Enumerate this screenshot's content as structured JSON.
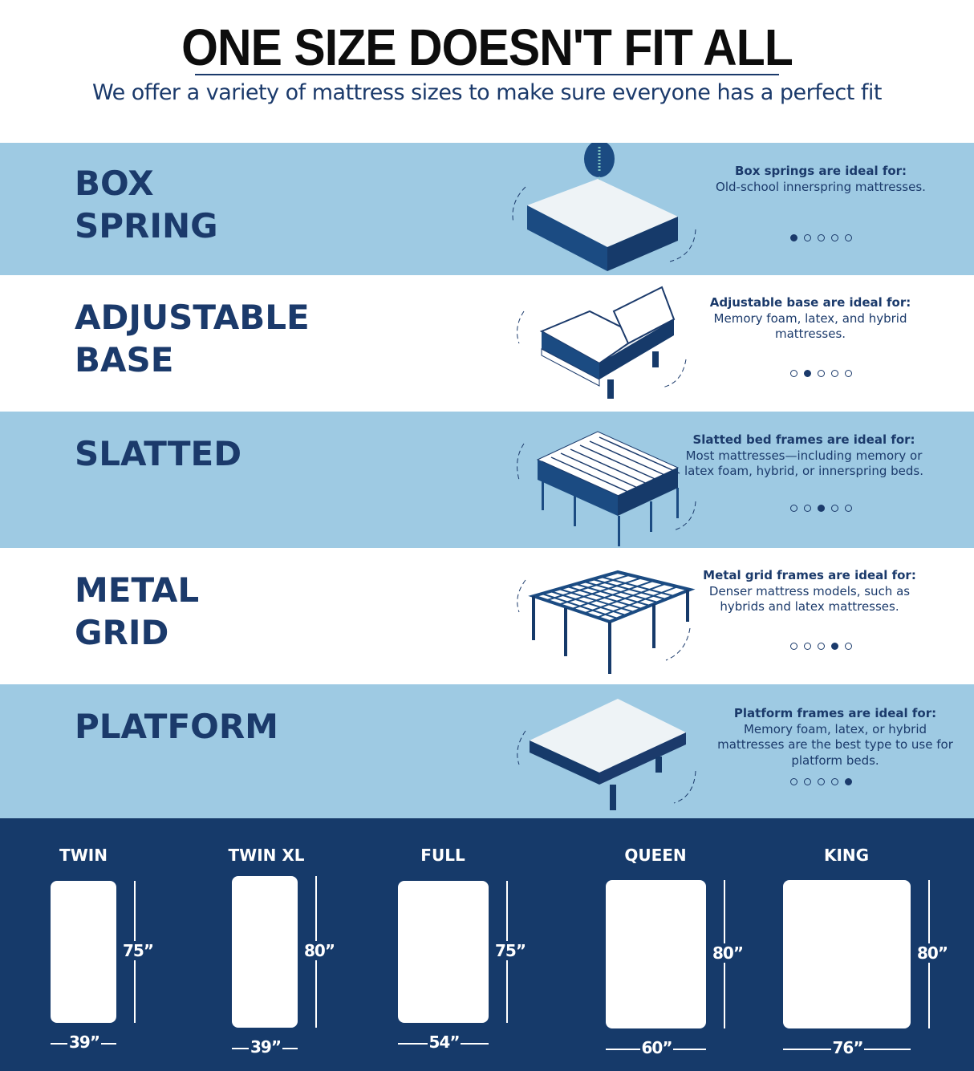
{
  "header": {
    "title": "ONE SIZE DOESN'T FIT ALL",
    "subtitle": "We offer a variety of mattress sizes to make sure everyone has a perfect fit"
  },
  "colors": {
    "light_band": "#9ecae3",
    "navy": "#163a6a",
    "text": "#1b3a6b"
  },
  "foundations": [
    {
      "title_line1": "BOX",
      "title_line2": "SPRING",
      "desc_heading": "Box springs are ideal for:",
      "desc_body": "Old-school innerspring mattresses.",
      "active_dot": 1,
      "icon": "box-spring-icon"
    },
    {
      "title_line1": "ADJUSTABLE",
      "title_line2": "BASE",
      "desc_heading": "Adjustable base are ideal for:",
      "desc_body": "Memory foam, latex, and hybrid mattresses.",
      "active_dot": 2,
      "icon": "adjustable-base-icon"
    },
    {
      "title_line1": "SLATTED",
      "title_line2": "",
      "desc_heading": "Slatted bed frames are ideal for:",
      "desc_body": "Most mattresses—including memory or latex foam, hybrid, or innerspring beds.",
      "active_dot": 3,
      "icon": "slatted-frame-icon"
    },
    {
      "title_line1": "METAL",
      "title_line2": "GRID",
      "desc_heading": "Metal grid frames are ideal for:",
      "desc_body": "Denser mattress models, such as hybrids and latex mattresses.",
      "active_dot": 4,
      "icon": "metal-grid-icon"
    },
    {
      "title_line1": "PLATFORM",
      "title_line2": "",
      "desc_heading": "Platform frames are ideal for:",
      "desc_body": "Memory foam, latex, or hybrid mattresses are the best type to use for platform beds.",
      "active_dot": 5,
      "icon": "platform-frame-icon"
    }
  ],
  "sizes": [
    {
      "name": "TWIN",
      "width": "39”",
      "length": "75”"
    },
    {
      "name": "TWIN XL",
      "width": "39”",
      "length": "80”"
    },
    {
      "name": "FULL",
      "width": "54”",
      "length": "75”"
    },
    {
      "name": "QUEEN",
      "width": "60”",
      "length": "80”"
    },
    {
      "name": "KING",
      "width": "76”",
      "length": "80”"
    }
  ]
}
